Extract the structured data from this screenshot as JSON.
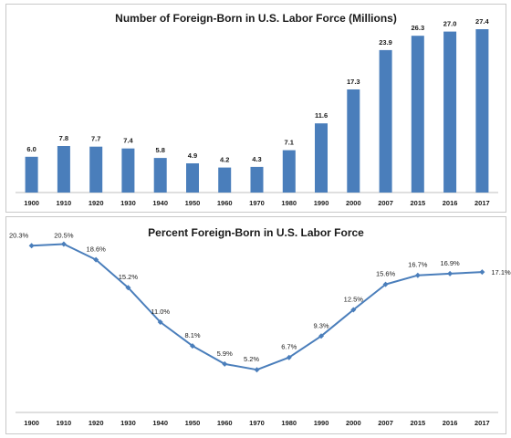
{
  "chart_data": [
    {
      "type": "bar",
      "title": "Number of Foreign-Born in U.S. Labor Force (Millions)",
      "categories": [
        "1900",
        "1910",
        "1920",
        "1930",
        "1940",
        "1950",
        "1960",
        "1970",
        "1980",
        "1990",
        "2000",
        "2007",
        "2015",
        "2016",
        "2017"
      ],
      "values": [
        6.0,
        7.8,
        7.7,
        7.4,
        5.8,
        4.9,
        4.2,
        4.3,
        7.1,
        11.6,
        17.3,
        23.9,
        26.3,
        27.0,
        27.4
      ],
      "value_labels": [
        "6.0",
        "7.8",
        "7.7",
        "7.4",
        "5.8",
        "4.9",
        "4.2",
        "4.3",
        "7.1",
        "11.6",
        "17.3",
        "23.9",
        "26.3",
        "27.0",
        "27.4"
      ],
      "ylim": [
        0,
        30
      ],
      "grid": false,
      "color": "#4a7ebb"
    },
    {
      "type": "line",
      "title": "Percent Foreign-Born in U.S. Labor Force",
      "categories": [
        "1900",
        "1910",
        "1920",
        "1930",
        "1940",
        "1950",
        "1960",
        "1970",
        "1980",
        "1990",
        "2000",
        "2007",
        "2015",
        "2016",
        "2017"
      ],
      "values": [
        20.3,
        20.5,
        18.6,
        15.2,
        11.0,
        8.1,
        5.9,
        5.2,
        6.7,
        9.3,
        12.5,
        15.6,
        16.7,
        16.9,
        17.1
      ],
      "value_labels": [
        "20.3%",
        "20.5%",
        "18.6%",
        "15.2%",
        "11.0%",
        "8.1%",
        "5.9%",
        "5.2%",
        "6.7%",
        "9.3%",
        "12.5%",
        "15.6%",
        "16.7%",
        "16.9%",
        "17.1%"
      ],
      "ylim": [
        0,
        22
      ],
      "grid": false,
      "color": "#4a7ebb"
    }
  ]
}
